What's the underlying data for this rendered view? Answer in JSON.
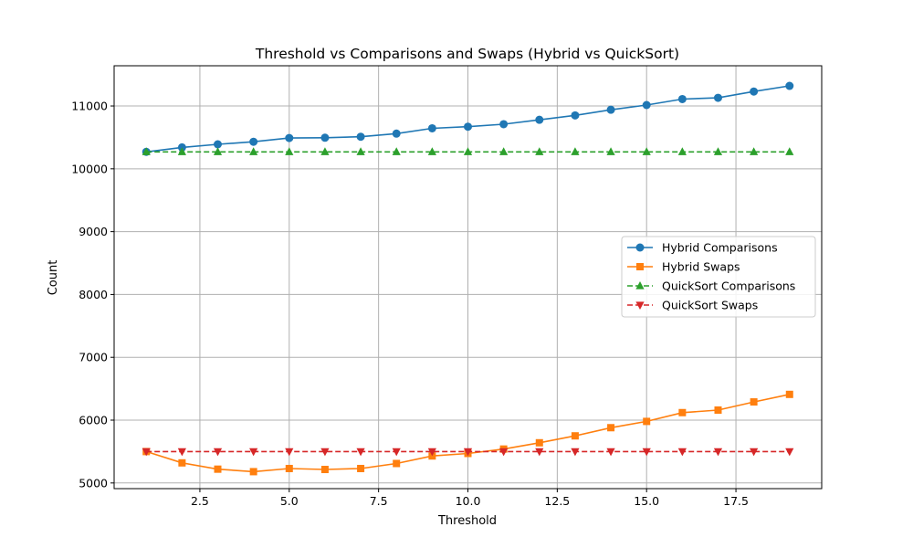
{
  "chart_data": {
    "type": "line",
    "title": "Threshold vs Comparisons and Swaps (Hybrid vs QuickSort)",
    "xlabel": "Threshold",
    "ylabel": "Count",
    "xlim": [
      0.1,
      19.9
    ],
    "ylim": [
      4910,
      11640
    ],
    "x_ticks": [
      2.5,
      5.0,
      7.5,
      10.0,
      12.5,
      15.0,
      17.5
    ],
    "x_tick_labels": [
      "2.5",
      "5.0",
      "7.5",
      "10.0",
      "12.5",
      "15.0",
      "17.5"
    ],
    "y_ticks": [
      5000,
      6000,
      7000,
      8000,
      9000,
      10000,
      11000
    ],
    "y_tick_labels": [
      "5000",
      "6000",
      "7000",
      "8000",
      "9000",
      "10000",
      "11000"
    ],
    "grid": true,
    "legend_position": "center-right",
    "x": [
      1,
      2,
      3,
      4,
      5,
      6,
      7,
      8,
      9,
      10,
      11,
      12,
      13,
      14,
      15,
      16,
      17,
      18,
      19
    ],
    "series": [
      {
        "name": "Hybrid Comparisons",
        "color": "#1f77b4",
        "marker": "circle",
        "linestyle": "solid",
        "values": [
          10270,
          10340,
          10390,
          10430,
          10490,
          10495,
          10510,
          10560,
          10645,
          10670,
          10710,
          10780,
          10850,
          10940,
          11015,
          11110,
          11130,
          11230,
          11320
        ]
      },
      {
        "name": "Hybrid Swaps",
        "color": "#ff7f0e",
        "marker": "square",
        "linestyle": "solid",
        "values": [
          5500,
          5320,
          5220,
          5180,
          5230,
          5215,
          5230,
          5310,
          5430,
          5470,
          5540,
          5640,
          5750,
          5880,
          5980,
          6120,
          6160,
          6290,
          6410
        ]
      },
      {
        "name": "QuickSort Comparisons",
        "color": "#2ca02c",
        "marker": "triangle-up",
        "linestyle": "dashed",
        "values": [
          10270,
          10270,
          10270,
          10270,
          10270,
          10270,
          10270,
          10270,
          10270,
          10270,
          10270,
          10270,
          10270,
          10270,
          10270,
          10270,
          10270,
          10270,
          10270
        ]
      },
      {
        "name": "QuickSort Swaps",
        "color": "#d62728",
        "marker": "triangle-down",
        "linestyle": "dashed",
        "values": [
          5500,
          5500,
          5500,
          5500,
          5500,
          5500,
          5500,
          5500,
          5500,
          5500,
          5500,
          5500,
          5500,
          5500,
          5500,
          5500,
          5500,
          5500,
          5500
        ]
      }
    ]
  }
}
